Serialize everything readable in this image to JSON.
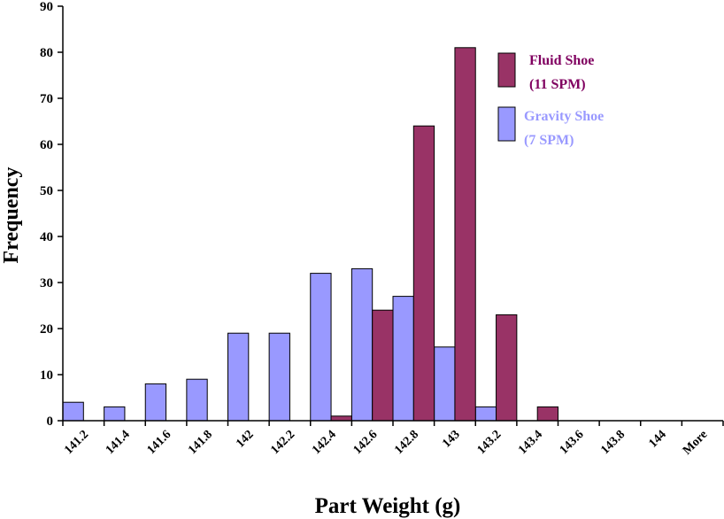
{
  "chart_data": {
    "type": "bar",
    "title": "",
    "xlabel": "Part Weight (g)",
    "ylabel": "Frequency",
    "ylim": [
      0,
      90
    ],
    "y_ticks": [
      "0",
      "10",
      "20",
      "30",
      "40",
      "50",
      "60",
      "70",
      "80",
      "90"
    ],
    "categories": [
      "141.2",
      "141.4",
      "141.6",
      "141.8",
      "142",
      "142.2",
      "142.4",
      "142.6",
      "142.8",
      "143",
      "143.2",
      "143.4",
      "143.6",
      "143.8",
      "144",
      "More"
    ],
    "series": [
      {
        "name": "Gravity Shoe (7 SPM)",
        "color": "#9999ff",
        "values": [
          4,
          3,
          8,
          9,
          19,
          19,
          32,
          33,
          27,
          16,
          3,
          0,
          0,
          0,
          0,
          0
        ]
      },
      {
        "name": "Fluid Shoe (11 SPM)",
        "color": "#993366",
        "values": [
          0,
          0,
          0,
          0,
          0,
          0,
          1,
          24,
          64,
          81,
          23,
          3,
          0,
          0,
          0,
          0
        ]
      }
    ],
    "legend": {
      "placement": "top-right",
      "entries": [
        {
          "line1": "Fluid Shoe",
          "line2": "(11 SPM)",
          "color": "#993366",
          "text_color": "#800060"
        },
        {
          "line1": "Gravity Shoe",
          "line2": "(7 SPM)",
          "color": "#9999ff",
          "text_color": "#9999ff"
        }
      ]
    },
    "grid": false
  }
}
